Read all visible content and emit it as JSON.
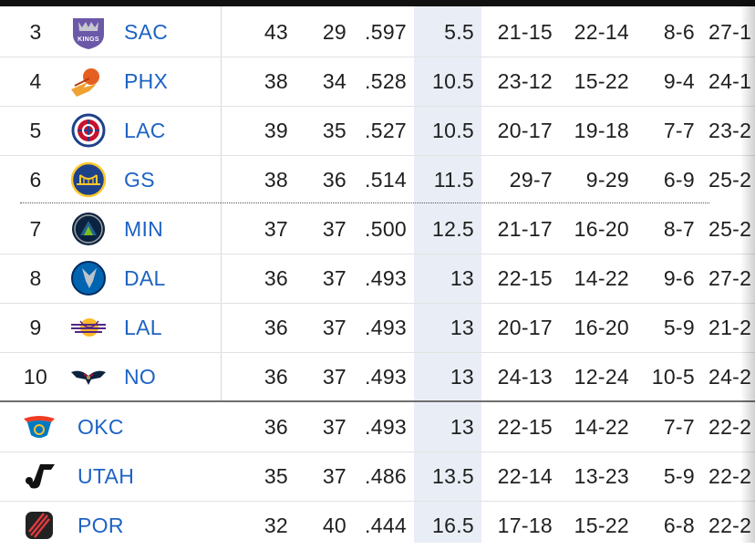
{
  "standings": {
    "rows": [
      {
        "rank": "3",
        "team": "SAC",
        "logo": "sac-logo",
        "w": "43",
        "l": "29",
        "pct": ".597",
        "gb": "5.5",
        "home": "21-15",
        "away": "22-14",
        "l10": "8-6",
        "strk": "27-1"
      },
      {
        "rank": "4",
        "team": "PHX",
        "logo": "phx-logo",
        "w": "38",
        "l": "34",
        "pct": ".528",
        "gb": "10.5",
        "home": "23-12",
        "away": "15-22",
        "l10": "9-4",
        "strk": "24-1"
      },
      {
        "rank": "5",
        "team": "LAC",
        "logo": "lac-logo",
        "w": "39",
        "l": "35",
        "pct": ".527",
        "gb": "10.5",
        "home": "20-17",
        "away": "19-18",
        "l10": "7-7",
        "strk": "23-2"
      },
      {
        "rank": "6",
        "team": "GS",
        "logo": "gs-logo",
        "w": "38",
        "l": "36",
        "pct": ".514",
        "gb": "11.5",
        "home": "29-7",
        "away": "9-29",
        "l10": "6-9",
        "strk": "25-2"
      },
      {
        "rank": "7",
        "team": "MIN",
        "logo": "min-logo",
        "w": "37",
        "l": "37",
        "pct": ".500",
        "gb": "12.5",
        "home": "21-17",
        "away": "16-20",
        "l10": "8-7",
        "strk": "25-2"
      },
      {
        "rank": "8",
        "team": "DAL",
        "logo": "dal-logo",
        "w": "36",
        "l": "37",
        "pct": ".493",
        "gb": "13",
        "home": "22-15",
        "away": "14-22",
        "l10": "9-6",
        "strk": "27-2"
      },
      {
        "rank": "9",
        "team": "LAL",
        "logo": "lal-logo",
        "w": "36",
        "l": "37",
        "pct": ".493",
        "gb": "13",
        "home": "20-17",
        "away": "16-20",
        "l10": "5-9",
        "strk": "21-2"
      },
      {
        "rank": "10",
        "team": "NO",
        "logo": "no-logo",
        "w": "36",
        "l": "37",
        "pct": ".493",
        "gb": "13",
        "home": "24-13",
        "away": "12-24",
        "l10": "10-5",
        "strk": "24-2"
      },
      {
        "rank": "",
        "team": "OKC",
        "logo": "okc-logo",
        "w": "36",
        "l": "37",
        "pct": ".493",
        "gb": "13",
        "home": "22-15",
        "away": "14-22",
        "l10": "7-7",
        "strk": "22-2"
      },
      {
        "rank": "",
        "team": "UTAH",
        "logo": "utah-logo",
        "w": "35",
        "l": "37",
        "pct": ".486",
        "gb": "13.5",
        "home": "22-14",
        "away": "13-23",
        "l10": "5-9",
        "strk": "22-2"
      },
      {
        "rank": "",
        "team": "POR",
        "logo": "por-logo",
        "w": "32",
        "l": "40",
        "pct": ".444",
        "gb": "16.5",
        "home": "17-18",
        "away": "15-22",
        "l10": "6-8",
        "strk": "22-2"
      }
    ]
  },
  "logo_text": {
    "sac": "KINGS"
  },
  "colors": {
    "team_link": "#1d63c4",
    "gb_column": "#e9eef6",
    "text": "#1f1f1f"
  }
}
